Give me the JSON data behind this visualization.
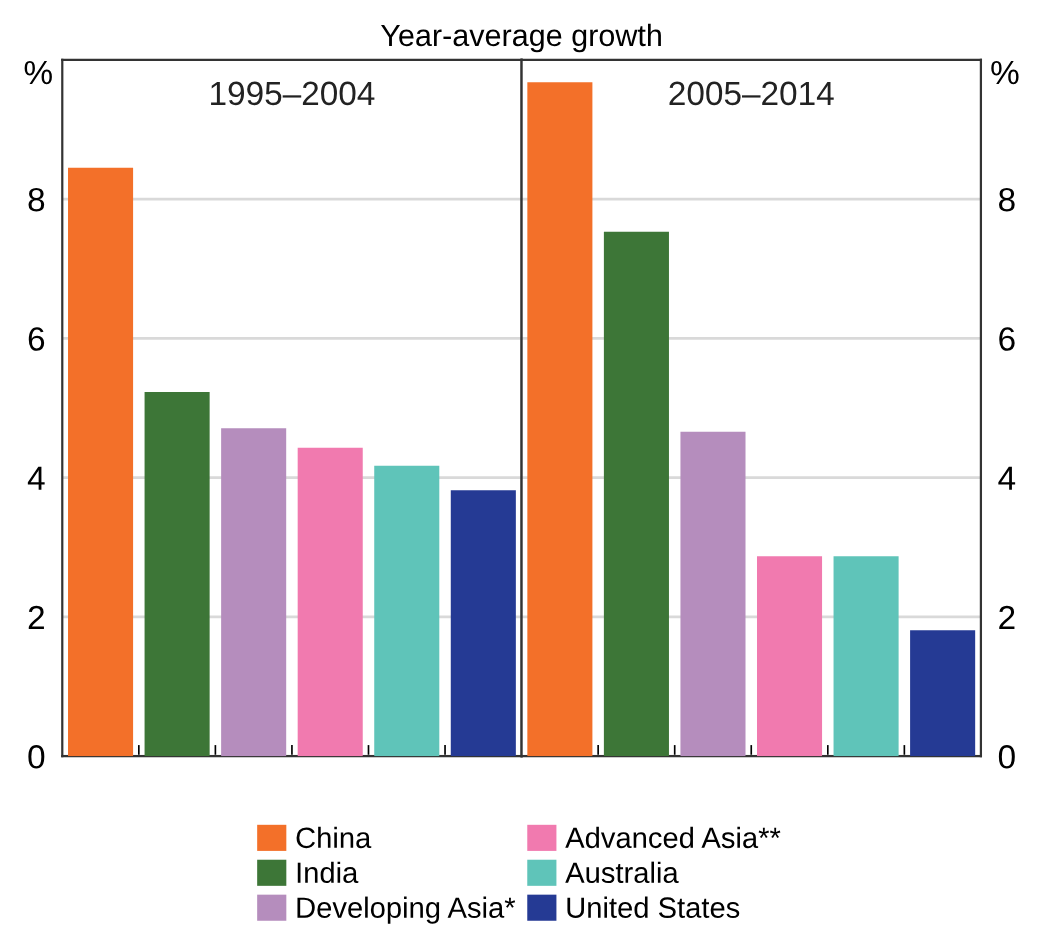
{
  "chart_data": [
    {
      "type": "bar",
      "subtitle": "Year-average growth",
      "title": "1995–2004",
      "ylabel": "%",
      "categories": [
        null,
        null,
        null,
        null,
        null,
        null
      ],
      "series": [
        {
          "name": "China",
          "color": "#f37029",
          "values": [
            8.45,
            null,
            null,
            null,
            null,
            null
          ]
        },
        {
          "name": "India",
          "color": "#3d7637",
          "values": [
            null,
            5.23,
            null,
            null,
            null,
            null
          ]
        },
        {
          "name": "Developing Asia*",
          "color": "#b58dbd",
          "values": [
            null,
            null,
            4.71,
            null,
            null,
            null
          ]
        },
        {
          "name": "Advanced Asia**",
          "color": "#f17aaf",
          "values": [
            null,
            null,
            null,
            4.43,
            null,
            null
          ]
        },
        {
          "name": "Australia",
          "color": "#5fc4b9",
          "values": [
            null,
            null,
            null,
            null,
            4.17,
            null
          ]
        },
        {
          "name": "United States",
          "color": "#253a94",
          "values": [
            null,
            null,
            null,
            null,
            null,
            3.82
          ]
        }
      ],
      "ylim": [
        0,
        10
      ],
      "yticks": [
        0,
        2,
        4,
        6,
        8
      ],
      "grid": "y",
      "legend": "bottom",
      "tick_labels": "y"
    },
    {
      "type": "bar",
      "title": "2005–2014",
      "y2label": "%",
      "categories": [
        null,
        null,
        null,
        null,
        null,
        null
      ],
      "series": [
        {
          "color": "#f37029",
          "values": [
            9.68,
            null,
            null,
            null,
            null,
            null
          ],
          "axis": "y2"
        },
        {
          "color": "#3d7637",
          "values": [
            null,
            7.53,
            null,
            null,
            null,
            null
          ],
          "axis": "y2"
        },
        {
          "color": "#b58dbd",
          "values": [
            null,
            null,
            4.66,
            null,
            null,
            null
          ],
          "axis": "y2"
        },
        {
          "color": "#f17aaf",
          "values": [
            null,
            null,
            null,
            2.87,
            null,
            null
          ],
          "axis": "y2"
        },
        {
          "color": "#5fc4b9",
          "values": [
            null,
            null,
            null,
            null,
            2.87,
            null
          ],
          "axis": "y2"
        },
        {
          "color": "#253a94",
          "values": [
            null,
            null,
            null,
            null,
            null,
            1.81
          ],
          "axis": "y2"
        }
      ],
      "y2lim": [
        0,
        10
      ],
      "y2ticks": [
        0,
        2,
        4,
        6,
        8
      ],
      "grid": "y",
      "tick_labels": "y"
    }
  ]
}
